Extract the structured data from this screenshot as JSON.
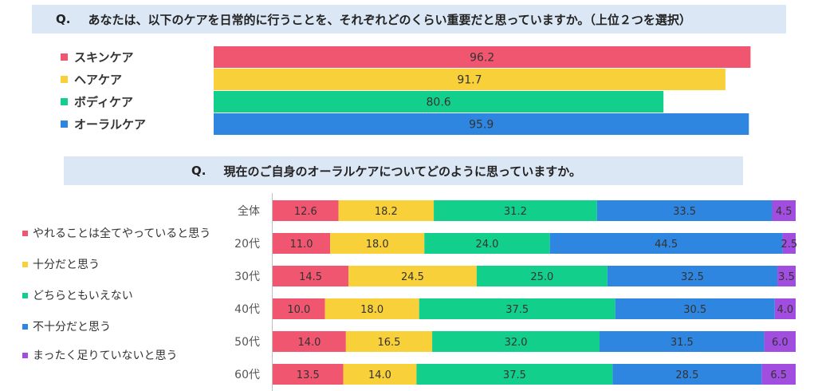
{
  "q1": {
    "label": "Q.",
    "text": "あなたは、以下のケアを日常的に行うことを、それぞれどのくらい重要だと思っていますか。（上位２つを選択）"
  },
  "q2": {
    "label": "Q.",
    "text": "現在のご自身のオーラルケアについてどのように思っていますか。"
  },
  "chart_data": [
    {
      "type": "bar",
      "orientation": "horizontal",
      "categories": [
        "スキンケア",
        "ヘアケア",
        "ボディケア",
        "オーラルケア"
      ],
      "values": [
        96.2,
        91.7,
        80.6,
        95.9
      ],
      "colors": [
        "#f0566f",
        "#f8d13a",
        "#12d08c",
        "#2f86e0"
      ],
      "xlim": [
        0,
        100
      ],
      "data_labels": true
    },
    {
      "type": "bar",
      "orientation": "horizontal",
      "stacked": true,
      "categories": [
        "全体",
        "20代",
        "30代",
        "40代",
        "50代",
        "60代"
      ],
      "series": [
        {
          "name": "やれることは全てやっていると思う",
          "color": "#f0566f",
          "values": [
            12.6,
            11.0,
            14.5,
            10.0,
            14.0,
            13.5
          ]
        },
        {
          "name": "十分だと思う",
          "color": "#f8d13a",
          "values": [
            18.2,
            18.0,
            24.5,
            18.0,
            16.5,
            14.0
          ]
        },
        {
          "name": "どちらともいえない",
          "color": "#12d08c",
          "values": [
            31.2,
            24.0,
            25.0,
            37.5,
            32.0,
            37.5
          ]
        },
        {
          "name": "不十分だと思う",
          "color": "#2f86e0",
          "values": [
            33.5,
            44.5,
            32.5,
            30.5,
            31.5,
            28.5
          ]
        },
        {
          "name": "まったく足りていないと思う",
          "color": "#a14ee0",
          "values": [
            4.5,
            2.5,
            3.5,
            4.0,
            6.0,
            6.5
          ]
        }
      ],
      "xlim": [
        0,
        100
      ],
      "data_labels": true
    }
  ]
}
